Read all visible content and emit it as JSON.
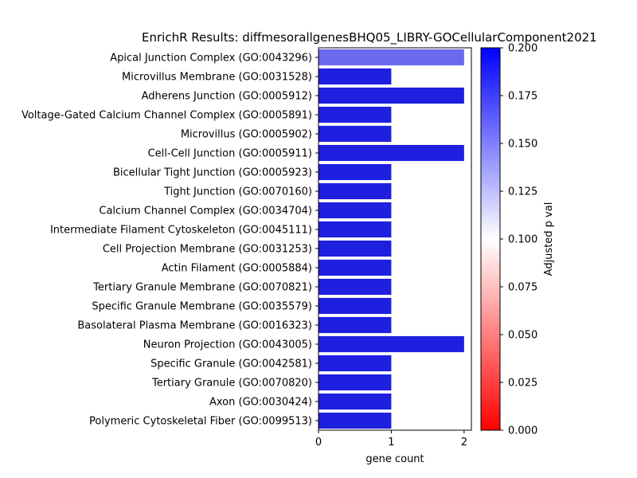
{
  "chart_data": {
    "type": "bar",
    "orientation": "horizontal",
    "title": "EnrichR Results: diffmesorallgenesBHQ05_LIBRY-GOCellularComponent2021",
    "xlabel": "gene count",
    "ylabel": "",
    "xlim": [
      0,
      2.1
    ],
    "x_ticks": [
      "0",
      "1",
      "2"
    ],
    "categories": [
      "Apical Junction Complex (GO:0043296)",
      "Microvillus Membrane (GO:0031528)",
      "Adherens Junction (GO:0005912)",
      "Voltage-Gated Calcium Channel Complex (GO:0005891)",
      "Microvillus (GO:0005902)",
      "Cell-Cell Junction (GO:0005911)",
      "Bicellular Tight Junction (GO:0005923)",
      "Tight Junction (GO:0070160)",
      "Calcium Channel Complex (GO:0034704)",
      "Intermediate Filament Cytoskeleton (GO:0045111)",
      "Cell Projection Membrane (GO:0031253)",
      "Actin Filament (GO:0005884)",
      "Tertiary Granule Membrane (GO:0070821)",
      "Specific Granule Membrane (GO:0035579)",
      "Basolateral Plasma Membrane (GO:0016323)",
      "Neuron Projection (GO:0043005)",
      "Specific Granule (GO:0042581)",
      "Tertiary Granule (GO:0070820)",
      "Axon (GO:0030424)",
      "Polymeric Cytoskeletal Fiber (GO:0099513)"
    ],
    "values": [
      2,
      1,
      2,
      1,
      1,
      2,
      1,
      1,
      1,
      1,
      1,
      1,
      1,
      1,
      1,
      2,
      1,
      1,
      1,
      1
    ],
    "bar_colors": [
      "#6a6aef",
      "#1f1fe0",
      "#1f1fe0",
      "#1f1fe0",
      "#1f1fe0",
      "#1f1fe0",
      "#1f1fe0",
      "#1f1fe0",
      "#1f1fe0",
      "#1f1fe0",
      "#1f1fe0",
      "#1f1fe0",
      "#1f1fe0",
      "#1f1fe0",
      "#1f1fe0",
      "#1f1fe0",
      "#1f1fe0",
      "#1f1fe0",
      "#1f1fe0",
      "#1f1fe0"
    ],
    "grid": false,
    "colorbar": {
      "label": "Adjusted p val",
      "range": [
        0,
        0.2
      ],
      "ticks": [
        "0.000",
        "0.025",
        "0.050",
        "0.075",
        "0.100",
        "0.125",
        "0.150",
        "0.175",
        "0.200"
      ],
      "colors": [
        "#ff0000",
        "#ffffff",
        "#0000ff"
      ]
    }
  }
}
